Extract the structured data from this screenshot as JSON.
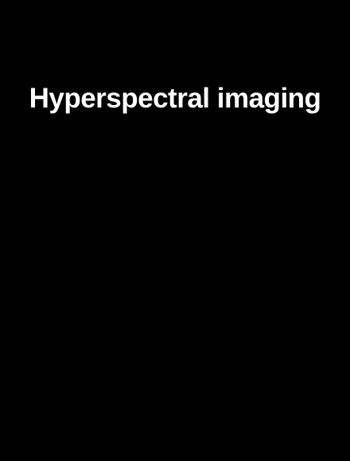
{
  "header": {
    "title": "Hyperspectral imaging"
  }
}
